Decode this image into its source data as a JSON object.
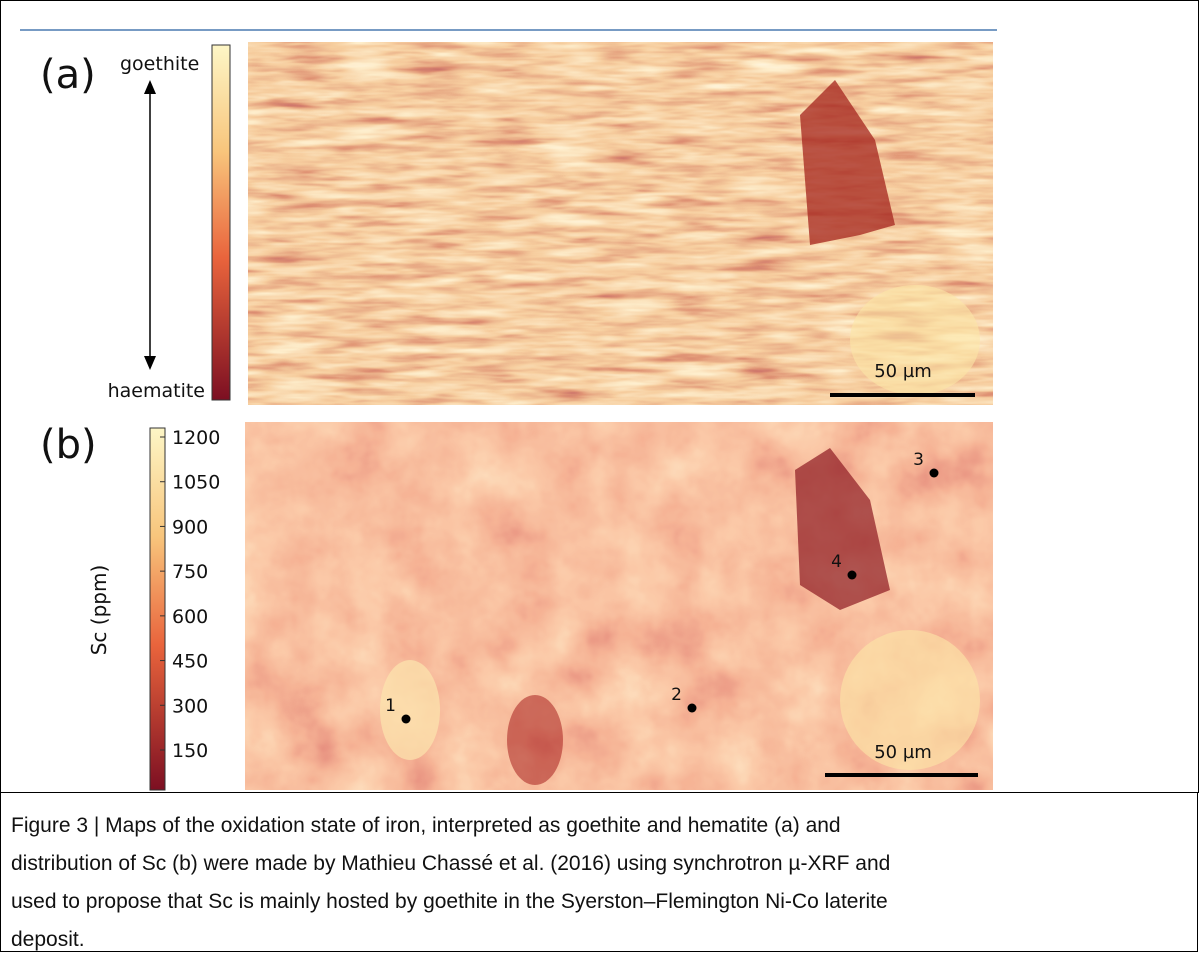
{
  "figure": {
    "panel_a": {
      "label": "(a)",
      "top_label": "goethite",
      "bottom_label": "haematite",
      "scale_bar": "50 µm"
    },
    "panel_b": {
      "label": "(b)",
      "colorbar": {
        "title": "Sc (ppm)",
        "ticks": [
          1200,
          1050,
          900,
          750,
          600,
          450,
          300,
          150
        ]
      },
      "points": [
        "1",
        "2",
        "3",
        "4"
      ],
      "scale_bar": "50 µm"
    }
  },
  "caption": {
    "lines": [
      "Figure 3 | Maps of the oxidation state of iron, interpreted as goethite and hematite (a) and",
      "distribution of Sc (b) were made by Mathieu Chassé et al. (2016) using synchrotron µ-XRF and",
      "used to propose that Sc is mainly hosted by goethite in the Syerston–Flemington Ni-Co laterite",
      "deposit."
    ]
  }
}
